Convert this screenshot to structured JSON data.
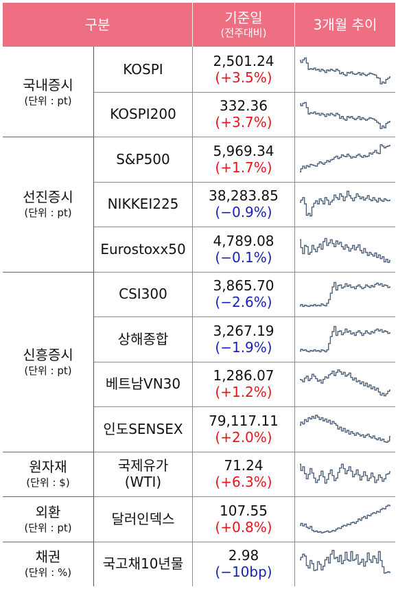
{
  "header": {
    "category": "구분",
    "base_date": "기준일",
    "base_date_sub": "(전주대비)",
    "trend": "3개월 추이"
  },
  "colors": {
    "header_bg": "#ef6f82",
    "positive": "#e8141c",
    "negative": "#1822b8",
    "line": "#4a5f7a"
  },
  "groups": [
    {
      "name": "국내증시",
      "unit": "(단위 : pt)",
      "rows": 2
    },
    {
      "name": "선진증시",
      "unit": "(단위 : pt)",
      "rows": 3
    },
    {
      "name": "신흥증시",
      "unit": "(단위 : pt)",
      "rows": 4
    },
    {
      "name": "원자재",
      "unit": "(단위 : $)",
      "rows": 1
    },
    {
      "name": "외환",
      "unit": "(단위 : pt)",
      "rows": 1
    },
    {
      "name": "채권",
      "unit": "(단위 : %)",
      "rows": 1
    }
  ],
  "rows": [
    {
      "label": "KOSPI",
      "value": "2,501.24",
      "change": "(+3.5%)",
      "dir": "pos",
      "trend": [
        0.78,
        0.72,
        0.8,
        0.86,
        0.7,
        0.5,
        0.52,
        0.5,
        0.54,
        0.48,
        0.5,
        0.44,
        0.5,
        0.46,
        0.4,
        0.48,
        0.45,
        0.5,
        0.47,
        0.44,
        0.5,
        0.46,
        0.36,
        0.4,
        0.34,
        0.3,
        0.4,
        0.38,
        0.42,
        0.36,
        0.34,
        0.36,
        0.4,
        0.32,
        0.38,
        0.34,
        0.3,
        0.34,
        0.38,
        0.36,
        0.34,
        0.32,
        0.24,
        0.22,
        0.04,
        0.1,
        0.06,
        0.18,
        0.22,
        0.26
      ]
    },
    {
      "label": "KOSPI200",
      "value": "332.36",
      "change": "(+3.7%)",
      "dir": "pos",
      "trend": [
        0.82,
        0.76,
        0.84,
        0.86,
        0.7,
        0.5,
        0.54,
        0.52,
        0.56,
        0.5,
        0.52,
        0.46,
        0.52,
        0.48,
        0.42,
        0.5,
        0.46,
        0.52,
        0.48,
        0.44,
        0.52,
        0.48,
        0.36,
        0.42,
        0.34,
        0.3,
        0.42,
        0.38,
        0.42,
        0.36,
        0.32,
        0.36,
        0.42,
        0.32,
        0.38,
        0.34,
        0.3,
        0.34,
        0.38,
        0.36,
        0.34,
        0.3,
        0.24,
        0.2,
        0.04,
        0.12,
        0.06,
        0.2,
        0.24,
        0.26
      ]
    },
    {
      "label": "S&P500",
      "value": "5,969.34",
      "change": "(+1.7%)",
      "dir": "pos",
      "trend": [
        0.1,
        0.2,
        0.28,
        0.22,
        0.3,
        0.26,
        0.34,
        0.32,
        0.3,
        0.28,
        0.36,
        0.42,
        0.38,
        0.34,
        0.4,
        0.46,
        0.42,
        0.48,
        0.5,
        0.56,
        0.6,
        0.52,
        0.56,
        0.64,
        0.6,
        0.58,
        0.66,
        0.6,
        0.54,
        0.58,
        0.56,
        0.62,
        0.66,
        0.6,
        0.56,
        0.62,
        0.58,
        0.6,
        0.7,
        0.66,
        0.72,
        0.78,
        0.7,
        0.68,
        0.96,
        0.92,
        0.86,
        0.9,
        0.92,
        0.94
      ]
    },
    {
      "label": "NIKKEI225",
      "value": "38,283.85",
      "change": "(−0.9%)",
      "dir": "neg",
      "trend": [
        0.55,
        0.62,
        0.7,
        0.5,
        0.14,
        0.2,
        0.12,
        0.4,
        0.52,
        0.6,
        0.5,
        0.66,
        0.6,
        0.5,
        0.7,
        0.62,
        0.48,
        0.56,
        0.62,
        0.78,
        0.7,
        0.64,
        0.82,
        0.74,
        0.6,
        0.72,
        0.9,
        0.76,
        0.68,
        0.6,
        0.7,
        0.82,
        0.74,
        0.66,
        0.72,
        0.62,
        0.68,
        0.76,
        0.64,
        0.6,
        0.7,
        0.62,
        0.56,
        0.68,
        0.62,
        0.58,
        0.66,
        0.62,
        0.6,
        0.62
      ]
    },
    {
      "label": "Eurostoxx50",
      "value": "4,789.08",
      "change": "(−0.1%)",
      "dir": "neg",
      "trend": [
        0.8,
        0.55,
        0.36,
        0.62,
        0.58,
        0.34,
        0.4,
        0.62,
        0.5,
        0.42,
        0.56,
        0.66,
        0.5,
        0.74,
        0.84,
        0.62,
        0.7,
        0.8,
        0.68,
        0.58,
        0.76,
        0.66,
        0.72,
        0.58,
        0.5,
        0.64,
        0.56,
        0.44,
        0.52,
        0.62,
        0.48,
        0.56,
        0.64,
        0.46,
        0.38,
        0.52,
        0.4,
        0.3,
        0.4,
        0.34,
        0.28,
        0.38,
        0.24,
        0.32,
        0.2,
        0.26,
        0.1,
        0.18,
        0.08,
        0.14
      ]
    },
    {
      "label": "CSI300",
      "value": "3,865.70",
      "change": "(−2.6%)",
      "dir": "neg",
      "trend": [
        0.12,
        0.16,
        0.1,
        0.14,
        0.12,
        0.1,
        0.14,
        0.12,
        0.16,
        0.12,
        0.14,
        0.12,
        0.18,
        0.14,
        0.12,
        0.2,
        0.32,
        0.52,
        0.72,
        0.86,
        0.62,
        0.76,
        0.78,
        0.68,
        0.72,
        0.82,
        0.74,
        0.78,
        0.7,
        0.72,
        0.66,
        0.74,
        0.78,
        0.72,
        0.66,
        0.7,
        0.78,
        0.74,
        0.7,
        0.76,
        0.72,
        0.8,
        0.84,
        0.78,
        0.82,
        0.74,
        0.78,
        0.76,
        0.7,
        0.72
      ]
    },
    {
      "label": "상해종합",
      "value": "3,267.19",
      "change": "(−1.9%)",
      "dir": "neg",
      "trend": [
        0.12,
        0.18,
        0.14,
        0.16,
        0.12,
        0.1,
        0.14,
        0.12,
        0.16,
        0.12,
        0.14,
        0.1,
        0.16,
        0.14,
        0.1,
        0.16,
        0.36,
        0.58,
        0.74,
        0.9,
        0.62,
        0.74,
        0.76,
        0.64,
        0.7,
        0.82,
        0.72,
        0.76,
        0.66,
        0.7,
        0.62,
        0.72,
        0.76,
        0.7,
        0.62,
        0.68,
        0.76,
        0.7,
        0.66,
        0.74,
        0.7,
        0.78,
        0.82,
        0.76,
        0.8,
        0.72,
        0.76,
        0.74,
        0.68,
        0.7
      ]
    },
    {
      "label": "베트남VN30",
      "value": "1,286.07",
      "change": "(+1.2%)",
      "dir": "pos",
      "trend": [
        0.64,
        0.62,
        0.56,
        0.68,
        0.74,
        0.6,
        0.66,
        0.8,
        0.74,
        0.66,
        0.58,
        0.62,
        0.52,
        0.64,
        0.72,
        0.68,
        0.78,
        0.82,
        0.9,
        0.76,
        0.86,
        0.94,
        0.88,
        0.8,
        0.86,
        0.74,
        0.78,
        0.84,
        0.7,
        0.62,
        0.68,
        0.56,
        0.6,
        0.5,
        0.56,
        0.44,
        0.52,
        0.4,
        0.46,
        0.34,
        0.4,
        0.3,
        0.36,
        0.24,
        0.14,
        0.2,
        0.12,
        0.18,
        0.26,
        0.3
      ]
    },
    {
      "label": "인도SENSEX",
      "value": "79,117.11",
      "change": "(+2.0%)",
      "dir": "pos",
      "trend": [
        0.62,
        0.72,
        0.66,
        0.8,
        0.74,
        0.86,
        0.82,
        0.9,
        0.84,
        0.94,
        0.88,
        0.8,
        0.86,
        0.76,
        0.82,
        0.72,
        0.78,
        0.66,
        0.74,
        0.68,
        0.62,
        0.5,
        0.56,
        0.44,
        0.52,
        0.4,
        0.46,
        0.34,
        0.42,
        0.36,
        0.3,
        0.38,
        0.34,
        0.28,
        0.32,
        0.24,
        0.3,
        0.34,
        0.26,
        0.22,
        0.28,
        0.2,
        0.16,
        0.22,
        0.14,
        0.18,
        0.1,
        0.08,
        0.12,
        0.26
      ]
    },
    {
      "label": "국제유가\n(WTI)",
      "value": "71.24",
      "change": "(+6.3%)",
      "dir": "pos",
      "trend": [
        0.8,
        0.6,
        0.72,
        0.5,
        0.34,
        0.48,
        0.66,
        0.52,
        0.36,
        0.22,
        0.3,
        0.44,
        0.58,
        0.4,
        0.2,
        0.32,
        0.5,
        0.62,
        0.44,
        0.28,
        0.36,
        0.54,
        0.68,
        0.8,
        0.66,
        0.5,
        0.6,
        0.72,
        0.58,
        0.4,
        0.48,
        0.62,
        0.46,
        0.3,
        0.42,
        0.56,
        0.44,
        0.28,
        0.36,
        0.52,
        0.4,
        0.22,
        0.3,
        0.46,
        0.38,
        0.26,
        0.34,
        0.48,
        0.5,
        0.56
      ]
    },
    {
      "label": "달러인덱스",
      "value": "107.55",
      "change": "(+0.8%)",
      "dir": "pos",
      "trend": [
        0.3,
        0.36,
        0.28,
        0.34,
        0.24,
        0.2,
        0.26,
        0.14,
        0.1,
        0.12,
        0.08,
        0.1,
        0.06,
        0.08,
        0.1,
        0.12,
        0.08,
        0.1,
        0.14,
        0.12,
        0.18,
        0.22,
        0.2,
        0.26,
        0.3,
        0.28,
        0.34,
        0.32,
        0.38,
        0.4,
        0.36,
        0.42,
        0.5,
        0.46,
        0.54,
        0.58,
        0.52,
        0.62,
        0.6,
        0.66,
        0.7,
        0.68,
        0.74,
        0.72,
        0.8,
        0.84,
        0.82,
        0.9,
        0.94,
        0.92
      ]
    },
    {
      "label": "국고채10년물",
      "value": "2.98",
      "change": "(−10bp)",
      "dir": "neg",
      "trend": [
        0.62,
        0.7,
        0.8,
        0.74,
        0.44,
        0.36,
        0.6,
        0.5,
        0.28,
        0.3,
        0.56,
        0.48,
        0.3,
        0.42,
        0.62,
        0.7,
        0.52,
        0.8,
        0.92,
        0.66,
        0.7,
        0.56,
        0.76,
        0.5,
        0.6,
        0.86,
        0.62,
        0.58,
        0.88,
        0.6,
        0.64,
        0.78,
        0.48,
        0.54,
        0.64,
        0.42,
        0.56,
        0.84,
        0.62,
        0.54,
        0.74,
        0.66,
        0.52,
        0.88,
        0.6,
        0.4,
        0.2,
        0.22,
        0.24,
        0.22
      ]
    }
  ]
}
